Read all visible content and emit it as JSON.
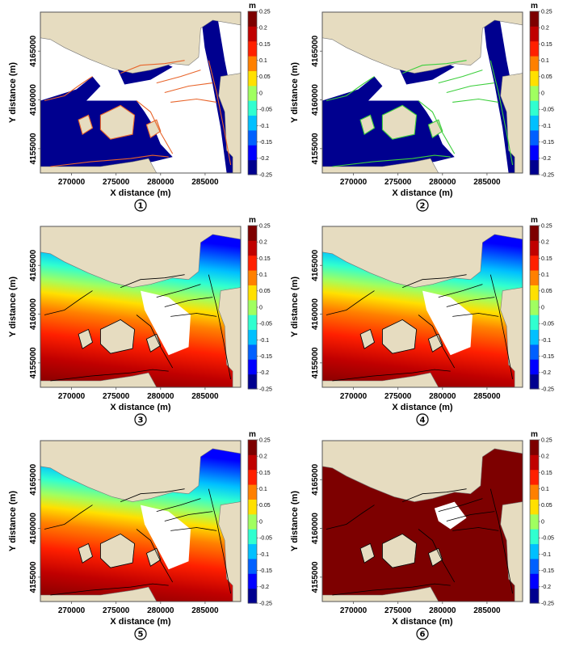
{
  "colors": {
    "land": "#e6dcc0",
    "frame": "#555555",
    "water_low": "#00008f",
    "water_high": "#7d0000",
    "outline_orange": "#e8642a",
    "outline_green": "#3ccf3c",
    "outline_black": "#000000"
  },
  "chart_data": [
    {
      "type": "heatmap",
      "panel_number": "1",
      "xlabel": "X distance (m)",
      "ylabel": "Y distance (m)",
      "x_ticks": [
        "270000",
        "275000",
        "280000",
        "285000"
      ],
      "y_ticks": [
        "4155000",
        "4160000",
        "4165000"
      ],
      "xlim": [
        266500,
        289000
      ],
      "ylim": [
        4152500,
        4169000
      ],
      "colorbar": {
        "unit": "m",
        "range": [
          -0.25,
          0.25
        ],
        "ticks": [
          "0.25",
          "0.2",
          "0.15",
          "0.1",
          "0.05",
          "0",
          "-0.05",
          "-0.1",
          "-0.15",
          "-0.2",
          "-0.25"
        ]
      },
      "field": "low",
      "outline": "orange"
    },
    {
      "type": "heatmap",
      "panel_number": "2",
      "xlabel": "X distance (m)",
      "ylabel": "Y distance (m)",
      "x_ticks": [
        "270000",
        "275000",
        "280000",
        "285000"
      ],
      "y_ticks": [
        "4155000",
        "4160000",
        "4165000"
      ],
      "xlim": [
        266500,
        289000
      ],
      "ylim": [
        4152500,
        4169000
      ],
      "colorbar": {
        "unit": "m",
        "range": [
          -0.25,
          0.25
        ],
        "ticks": [
          "0.25",
          "0.2",
          "0.15",
          "0.1",
          "0.05",
          "0",
          "-0.05",
          "-0.1",
          "-0.15",
          "-0.2",
          "-0.25"
        ]
      },
      "field": "low",
      "outline": "green"
    },
    {
      "type": "heatmap",
      "panel_number": "3",
      "xlabel": "X distance (m)",
      "ylabel": "Y distance (m)",
      "x_ticks": [
        "270000",
        "275000",
        "280000",
        "285000"
      ],
      "y_ticks": [
        "4155000",
        "4160000",
        "4165000"
      ],
      "xlim": [
        266500,
        289000
      ],
      "ylim": [
        4152500,
        4169000
      ],
      "colorbar": {
        "unit": "m",
        "range": [
          -0.25,
          0.25
        ],
        "ticks": [
          "0.25",
          "0.2",
          "0.15",
          "0.1",
          "0.05",
          "0",
          "-0.05",
          "-0.1",
          "-0.15",
          "-0.2",
          "-0.25"
        ]
      },
      "field": "gradient",
      "outline": "black"
    },
    {
      "type": "heatmap",
      "panel_number": "4",
      "xlabel": "X distance (m)",
      "ylabel": "Y distance (m)",
      "x_ticks": [
        "270000",
        "275000",
        "280000",
        "285000"
      ],
      "y_ticks": [
        "4155000",
        "4160000",
        "4165000"
      ],
      "xlim": [
        266500,
        289000
      ],
      "ylim": [
        4152500,
        4169000
      ],
      "colorbar": {
        "unit": "m",
        "range": [
          -0.25,
          0.25
        ],
        "ticks": [
          "0.25",
          "0.2",
          "0.15",
          "0.1",
          "0.05",
          "0",
          "-0.05",
          "-0.1",
          "-0.15",
          "-0.2",
          "-0.25"
        ]
      },
      "field": "gradient",
      "outline": "black"
    },
    {
      "type": "heatmap",
      "panel_number": "5",
      "xlabel": "X distance (m)",
      "ylabel": "Y distance (m)",
      "x_ticks": [
        "270000",
        "275000",
        "280000",
        "285000"
      ],
      "y_ticks": [
        "4155000",
        "4160000",
        "4165000"
      ],
      "xlim": [
        266500,
        289000
      ],
      "ylim": [
        4152500,
        4169000
      ],
      "colorbar": {
        "unit": "m",
        "range": [
          -0.25,
          0.25
        ],
        "ticks": [
          "0.25",
          "0.2",
          "0.15",
          "0.1",
          "0.05",
          "0",
          "-0.05",
          "-0.1",
          "-0.15",
          "-0.2",
          "-0.25"
        ]
      },
      "field": "gradient",
      "outline": "black"
    },
    {
      "type": "heatmap",
      "panel_number": "6",
      "xlabel": "X distance (m)",
      "ylabel": "Y distance (m)",
      "x_ticks": [
        "270000",
        "275000",
        "280000",
        "285000"
      ],
      "y_ticks": [
        "4155000",
        "4160000",
        "4165000"
      ],
      "xlim": [
        266500,
        289000
      ],
      "ylim": [
        4152500,
        4169000
      ],
      "colorbar": {
        "unit": "m",
        "range": [
          -0.25,
          0.25
        ],
        "ticks": [
          "0.25",
          "0.2",
          "0.15",
          "0.1",
          "0.05",
          "0",
          "-0.05",
          "-0.1",
          "-0.15",
          "-0.2",
          "-0.25"
        ]
      },
      "field": "high",
      "outline": "black"
    }
  ]
}
